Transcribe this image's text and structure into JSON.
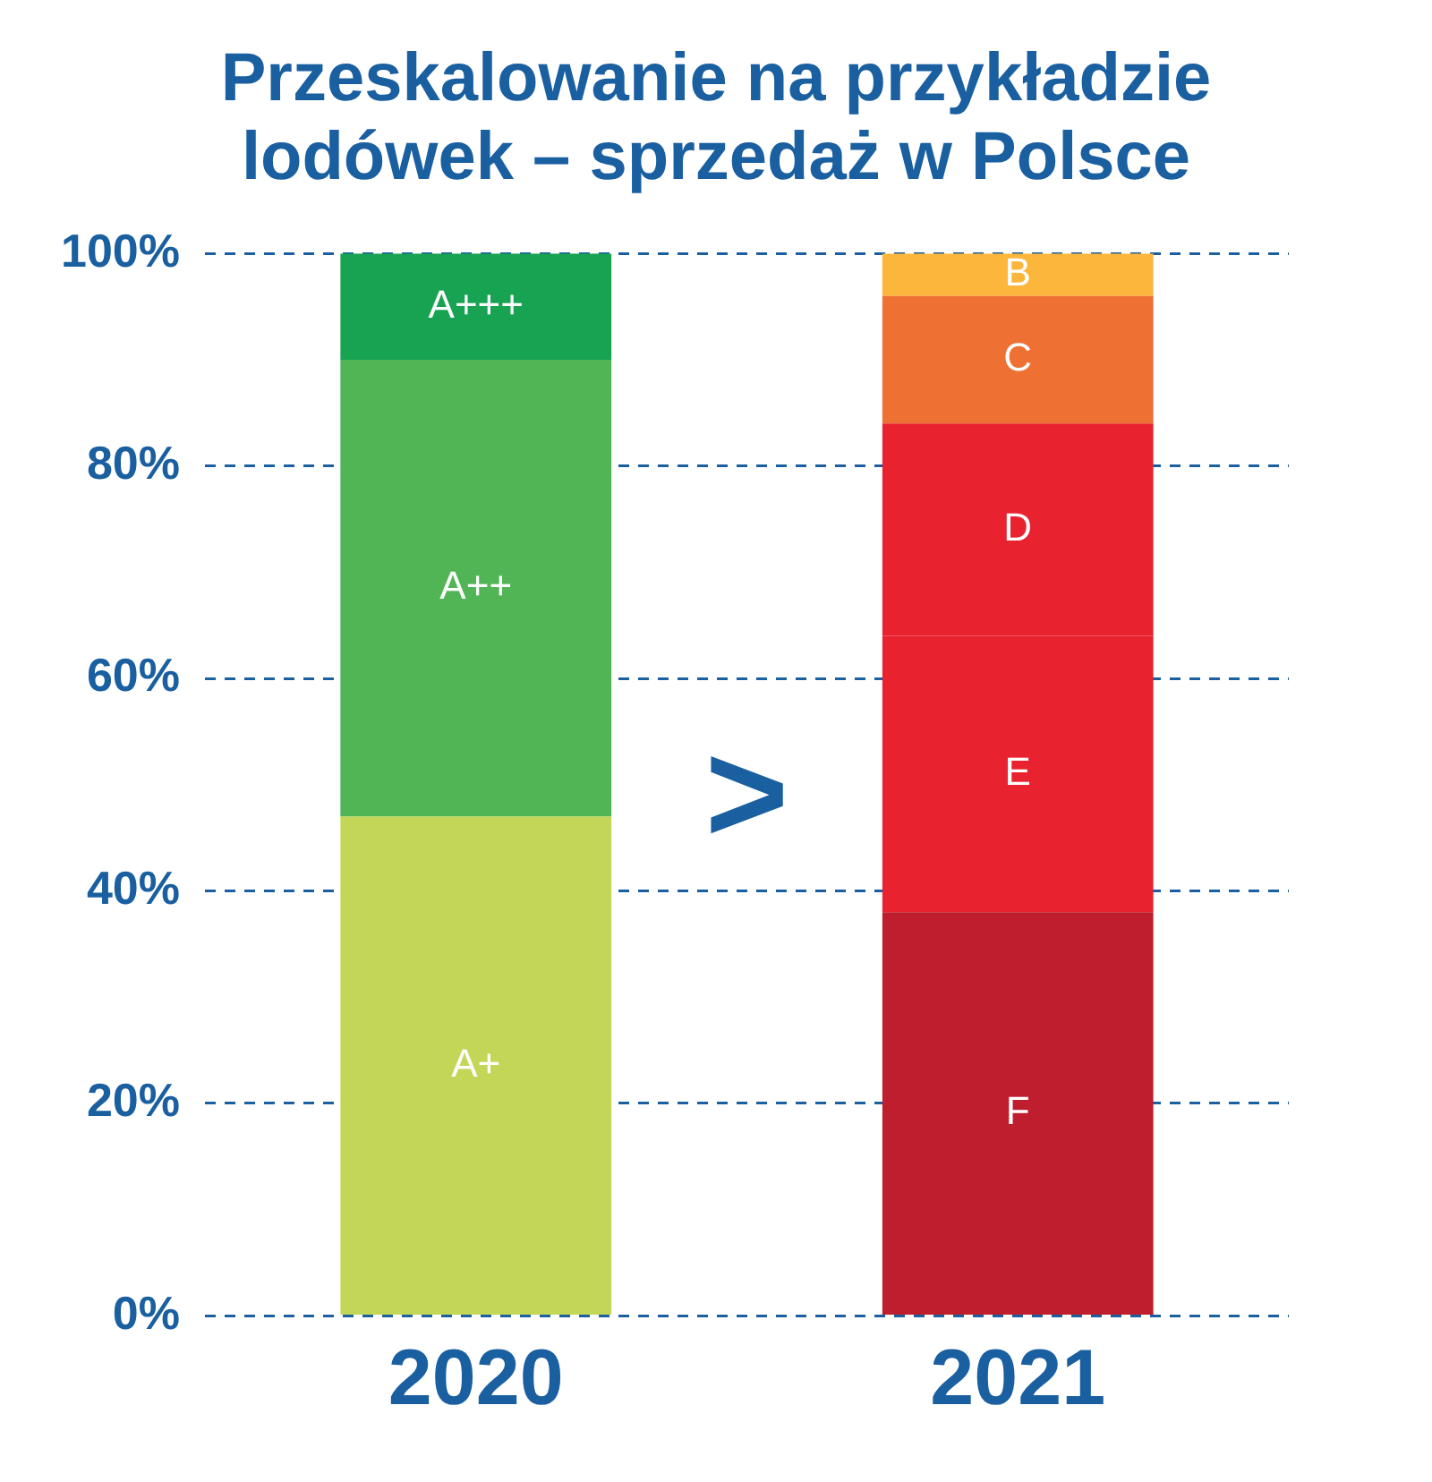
{
  "chart_data": {
    "type": "bar",
    "title": "Przeskalowanie na przykładzie lodówek –  sprzedaż w Polsce",
    "categories": [
      "2020",
      "2021"
    ],
    "stacked": true,
    "legend": false,
    "grid": "y",
    "series": [
      {
        "name": "A+",
        "color": "#c3d657",
        "values": [
          47,
          null
        ]
      },
      {
        "name": "A++",
        "color": "#52b555",
        "values": [
          43,
          null
        ]
      },
      {
        "name": "A+++",
        "color": "#17a352",
        "values": [
          10,
          null
        ]
      },
      {
        "name": "F",
        "color": "#be1e2d",
        "values": [
          null,
          38
        ]
      },
      {
        "name": "E",
        "color": "#e8222f",
        "values": [
          null,
          26
        ]
      },
      {
        "name": "D",
        "color": "#e8222f",
        "values": [
          null,
          20
        ]
      },
      {
        "name": "C",
        "color": "#ee7133",
        "values": [
          null,
          12
        ]
      },
      {
        "name": "B",
        "color": "#fbb63b",
        "values": [
          null,
          4
        ]
      }
    ],
    "ylim": [
      0,
      100
    ],
    "yticks": [
      {
        "value": 0,
        "label": "0%"
      },
      {
        "value": 20,
        "label": "20%"
      },
      {
        "value": 40,
        "label": "40%"
      },
      {
        "value": 60,
        "label": "60%"
      },
      {
        "value": 80,
        "label": "80%"
      },
      {
        "value": 100,
        "label": "100%"
      }
    ],
    "annotations": [
      ">"
    ]
  }
}
